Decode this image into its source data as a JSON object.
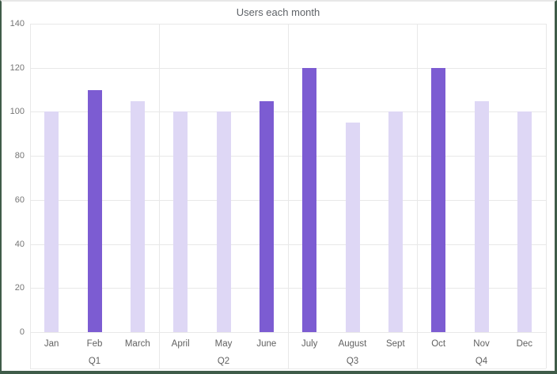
{
  "chart_data": {
    "type": "bar",
    "title": "Users each month",
    "categories": [
      "Jan",
      "Feb",
      "March",
      "April",
      "May",
      "June",
      "July",
      "August",
      "Sept",
      "Oct",
      "Nov",
      "Dec"
    ],
    "values": [
      100,
      110,
      105,
      100,
      100,
      105,
      120,
      95,
      100,
      120,
      105,
      100
    ],
    "highlighted": [
      false,
      true,
      false,
      false,
      false,
      true,
      true,
      false,
      false,
      true,
      false,
      false
    ],
    "group_labels": [
      "Q1",
      "Q2",
      "Q3",
      "Q4"
    ],
    "group_size": 3,
    "xlabel": "",
    "ylabel": "",
    "ylim": [
      0,
      140
    ],
    "yticks": [
      0,
      20,
      40,
      60,
      80,
      100,
      120,
      140
    ],
    "grid": "horizontal",
    "legend": "none",
    "bar_color_default": "#ded7f5",
    "bar_color_highlight": "#7c5cd2"
  },
  "colors": {
    "frame_border": "#3f5c49",
    "frame_border_top": "#e7e7e7",
    "gridline": "#e8e8e8",
    "axis_text": "#757575",
    "category_text": "#616161",
    "title_text": "#5f6368",
    "background": "#ffffff"
  }
}
